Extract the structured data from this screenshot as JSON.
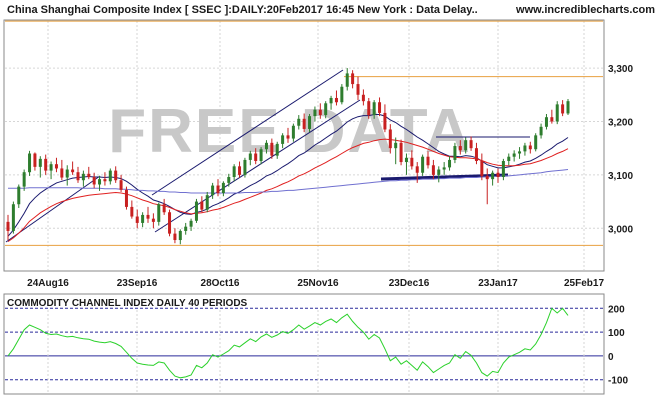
{
  "header": {
    "title": "China Shanghai Composite Index [ SSEC ]:DAILY:20Feb2017 16:45 New York : Data Delay..",
    "site": "www.incrediblecharts.com"
  },
  "watermark": "FREE DATA",
  "colors": {
    "header_bg": "#ffffff",
    "frame": "#8a8a8a",
    "grid": "#d6d6d6",
    "up": "#2e7d2e",
    "down": "#c82020",
    "ma_fast": "#1a1a6e",
    "ma_mid": "#e02020",
    "ma_slow": "#7070d0",
    "hline": "#e8a040",
    "trend": "#1a1a6e",
    "support": "#1a1a6e",
    "cci": "#2bd12b",
    "cci_ref": "#2a2a9a",
    "watermark": "#c8c8c8"
  },
  "chart_data": [
    {
      "type": "candlestick",
      "title": "China Shanghai Composite Index [ SSEC ]:DAILY:20Feb2017 16:45 New York : Data Delay..",
      "x_tick_labels": [
        "24Aug16",
        "23Sep16",
        "28Oct16",
        "25Nov16",
        "23Dec16",
        "23Jan17",
        "25Feb17"
      ],
      "y_tick_labels": [
        "3,300",
        "3,200",
        "3,100",
        "3,000"
      ],
      "y_ticks": [
        3300,
        3200,
        3100,
        3000
      ],
      "ylim": [
        2920,
        3390
      ],
      "grid": true,
      "horizontal_levels": [
        3388,
        3284,
        2968
      ],
      "candles": [
        [
          3012,
          3025,
          2978,
          2995
        ],
        [
          2995,
          3050,
          2990,
          3045
        ],
        [
          3045,
          3082,
          3038,
          3078
        ],
        [
          3078,
          3110,
          3070,
          3105
        ],
        [
          3105,
          3145,
          3098,
          3140
        ],
        [
          3140,
          3142,
          3108,
          3115
        ],
        [
          3115,
          3135,
          3095,
          3130
        ],
        [
          3130,
          3138,
          3100,
          3108
        ],
        [
          3108,
          3125,
          3092,
          3120
        ],
        [
          3120,
          3132,
          3105,
          3112
        ],
        [
          3112,
          3128,
          3090,
          3095
        ],
        [
          3095,
          3118,
          3080,
          3110
        ],
        [
          3110,
          3125,
          3100,
          3105
        ],
        [
          3105,
          3115,
          3085,
          3090
        ],
        [
          3090,
          3108,
          3078,
          3102
        ],
        [
          3102,
          3115,
          3092,
          3096
        ],
        [
          3096,
          3104,
          3075,
          3082
        ],
        [
          3082,
          3098,
          3070,
          3092
        ],
        [
          3092,
          3105,
          3080,
          3088
        ],
        [
          3088,
          3112,
          3082,
          3108
        ],
        [
          3108,
          3116,
          3085,
          3090
        ],
        [
          3090,
          3100,
          3068,
          3072
        ],
        [
          3072,
          3078,
          3035,
          3040
        ],
        [
          3040,
          3052,
          3018,
          3022
        ],
        [
          3022,
          3035,
          3000,
          3010
        ],
        [
          3010,
          3030,
          3002,
          3025
        ],
        [
          3025,
          3040,
          3010,
          3018
        ],
        [
          3018,
          3028,
          3000,
          3012
        ],
        [
          3012,
          3048,
          3005,
          3045
        ],
        [
          3045,
          3055,
          3025,
          3030
        ],
        [
          3030,
          3035,
          2985,
          2990
        ],
        [
          2990,
          3000,
          2972,
          2978
        ],
        [
          2978,
          2998,
          2970,
          2995
        ],
        [
          2995,
          3010,
          2988,
          3003
        ],
        [
          3003,
          3018,
          2995,
          3014
        ],
        [
          3014,
          3055,
          3010,
          3050
        ],
        [
          3050,
          3060,
          3030,
          3035
        ],
        [
          3035,
          3068,
          3030,
          3062
        ],
        [
          3062,
          3085,
          3055,
          3080
        ],
        [
          3080,
          3092,
          3060,
          3066
        ],
        [
          3066,
          3088,
          3060,
          3085
        ],
        [
          3085,
          3102,
          3078,
          3096
        ],
        [
          3096,
          3120,
          3088,
          3116
        ],
        [
          3116,
          3125,
          3095,
          3100
        ],
        [
          3100,
          3132,
          3095,
          3128
        ],
        [
          3128,
          3145,
          3118,
          3140
        ],
        [
          3140,
          3150,
          3120,
          3126
        ],
        [
          3126,
          3152,
          3120,
          3148
        ],
        [
          3148,
          3165,
          3140,
          3160
        ],
        [
          3160,
          3168,
          3130,
          3136
        ],
        [
          3136,
          3162,
          3130,
          3158
        ],
        [
          3158,
          3178,
          3150,
          3174
        ],
        [
          3174,
          3188,
          3160,
          3168
        ],
        [
          3168,
          3196,
          3162,
          3192
        ],
        [
          3192,
          3212,
          3185,
          3205
        ],
        [
          3205,
          3215,
          3180,
          3186
        ],
        [
          3186,
          3214,
          3180,
          3210
        ],
        [
          3210,
          3228,
          3200,
          3222
        ],
        [
          3222,
          3234,
          3205,
          3212
        ],
        [
          3212,
          3238,
          3206,
          3234
        ],
        [
          3234,
          3248,
          3222,
          3244
        ],
        [
          3244,
          3258,
          3230,
          3236
        ],
        [
          3236,
          3270,
          3232,
          3265
        ],
        [
          3265,
          3300,
          3258,
          3290
        ],
        [
          3290,
          3296,
          3262,
          3270
        ],
        [
          3270,
          3284,
          3240,
          3250
        ],
        [
          3250,
          3260,
          3230,
          3238
        ],
        [
          3238,
          3244,
          3205,
          3212
        ],
        [
          3212,
          3240,
          3205,
          3236
        ],
        [
          3236,
          3245,
          3210,
          3216
        ],
        [
          3216,
          3232,
          3180,
          3185
        ],
        [
          3185,
          3195,
          3140,
          3150
        ],
        [
          3150,
          3170,
          3120,
          3160
        ],
        [
          3160,
          3166,
          3118,
          3124
        ],
        [
          3124,
          3140,
          3100,
          3132
        ],
        [
          3132,
          3146,
          3110,
          3116
        ],
        [
          3116,
          3124,
          3085,
          3104
        ],
        [
          3104,
          3138,
          3098,
          3134
        ],
        [
          3134,
          3144,
          3112,
          3118
        ],
        [
          3118,
          3128,
          3092,
          3100
        ],
        [
          3100,
          3116,
          3086,
          3110
        ],
        [
          3110,
          3124,
          3100,
          3114
        ],
        [
          3114,
          3135,
          3108,
          3128
        ],
        [
          3128,
          3160,
          3122,
          3154
        ],
        [
          3154,
          3165,
          3138,
          3146
        ],
        [
          3146,
          3170,
          3140,
          3165
        ],
        [
          3165,
          3172,
          3145,
          3150
        ],
        [
          3150,
          3160,
          3120,
          3126
        ],
        [
          3126,
          3140,
          3090,
          3098
        ],
        [
          3098,
          3112,
          3045,
          3092
        ],
        [
          3092,
          3108,
          3080,
          3104
        ],
        [
          3104,
          3112,
          3085,
          3096
        ],
        [
          3096,
          3130,
          3090,
          3126
        ],
        [
          3126,
          3140,
          3118,
          3134
        ],
        [
          3134,
          3146,
          3125,
          3140
        ],
        [
          3140,
          3152,
          3130,
          3144
        ],
        [
          3144,
          3160,
          3136,
          3155
        ],
        [
          3155,
          3162,
          3140,
          3148
        ],
        [
          3148,
          3178,
          3144,
          3174
        ],
        [
          3174,
          3196,
          3168,
          3190
        ],
        [
          3190,
          3214,
          3185,
          3208
        ],
        [
          3208,
          3222,
          3196,
          3200
        ],
        [
          3200,
          3238,
          3195,
          3232
        ],
        [
          3232,
          3240,
          3210,
          3215
        ],
        [
          3215,
          3242,
          3212,
          3238
        ]
      ],
      "series": [
        {
          "name": "",
          "values": [
            2985,
            2997,
            3012,
            3028,
            3046,
            3057,
            3066,
            3073,
            3079,
            3085,
            3088,
            3091,
            3094,
            3095,
            3096,
            3097,
            3096,
            3096,
            3095,
            3096,
            3095,
            3093,
            3088,
            3081,
            3073,
            3066,
            3060,
            3053,
            3050,
            3046,
            3041,
            3035,
            3030,
            3027,
            3026,
            3030,
            3032,
            3036,
            3042,
            3046,
            3051,
            3057,
            3064,
            3068,
            3074,
            3080,
            3085,
            3091,
            3098,
            3102,
            3108,
            3115,
            3121,
            3128,
            3136,
            3141,
            3148,
            3156,
            3162,
            3169,
            3176,
            3182,
            3190,
            3199,
            3205,
            3209,
            3211,
            3211,
            3213,
            3213,
            3210,
            3203,
            3198,
            3191,
            3185,
            3178,
            3171,
            3165,
            3158,
            3151,
            3144,
            3139,
            3135,
            3135,
            3134,
            3136,
            3135,
            3132,
            3126,
            3119,
            3116,
            3113,
            3113,
            3115,
            3117,
            3120,
            3124,
            3126,
            3131,
            3137,
            3144,
            3150,
            3158,
            3163,
            3170
          ]
        },
        {
          "name": "",
          "values": [
            2975,
            2982,
            2991,
            3001,
            3013,
            3021,
            3029,
            3035,
            3041,
            3046,
            3050,
            3053,
            3056,
            3058,
            3060,
            3062,
            3063,
            3064,
            3065,
            3066,
            3067,
            3066,
            3064,
            3061,
            3057,
            3053,
            3050,
            3046,
            3044,
            3042,
            3039,
            3035,
            3032,
            3029,
            3027,
            3028,
            3029,
            3031,
            3034,
            3036,
            3039,
            3043,
            3047,
            3050,
            3054,
            3058,
            3062,
            3066,
            3071,
            3074,
            3078,
            3083,
            3087,
            3092,
            3098,
            3102,
            3107,
            3113,
            3118,
            3123,
            3129,
            3134,
            3140,
            3146,
            3151,
            3155,
            3159,
            3161,
            3164,
            3166,
            3167,
            3166,
            3165,
            3163,
            3161,
            3158,
            3155,
            3152,
            3148,
            3144,
            3140,
            3137,
            3134,
            3133,
            3132,
            3132,
            3131,
            3130,
            3127,
            3123,
            3120,
            3118,
            3117,
            3117,
            3117,
            3118,
            3120,
            3121,
            3124,
            3127,
            3131,
            3135,
            3140,
            3144,
            3149
          ]
        },
        {
          "name": "",
          "values": [
            3075,
            3075,
            3075,
            3075,
            3076,
            3076,
            3076,
            3076,
            3076,
            3076,
            3076,
            3076,
            3076,
            3076,
            3075,
            3075,
            3075,
            3075,
            3074,
            3074,
            3074,
            3073,
            3073,
            3072,
            3071,
            3071,
            3070,
            3070,
            3069,
            3069,
            3068,
            3068,
            3067,
            3067,
            3066,
            3066,
            3066,
            3066,
            3066,
            3066,
            3066,
            3066,
            3066,
            3066,
            3067,
            3067,
            3067,
            3068,
            3068,
            3069,
            3069,
            3070,
            3071,
            3071,
            3072,
            3073,
            3074,
            3075,
            3076,
            3077,
            3078,
            3079,
            3080,
            3081,
            3082,
            3083,
            3084,
            3085,
            3086,
            3087,
            3088,
            3089,
            3089,
            3090,
            3090,
            3091,
            3091,
            3092,
            3092,
            3092,
            3093,
            3093,
            3094,
            3094,
            3094,
            3095,
            3095,
            3095,
            3096,
            3096,
            3097,
            3097,
            3098,
            3098,
            3099,
            3100,
            3101,
            3102,
            3103,
            3104,
            3106,
            3107,
            3108,
            3109,
            3110
          ]
        }
      ]
    },
    {
      "type": "line",
      "title": "COMMODITY CHANNEL INDEX DAILY 40 PERIODS",
      "y_tick_labels": [
        "200",
        "100",
        "0",
        "-100"
      ],
      "y_ticks": [
        200,
        100,
        0,
        -100
      ],
      "ylim": [
        -160,
        260
      ],
      "reference_lines": [
        200,
        100,
        0,
        -100
      ],
      "series": [
        {
          "name": "",
          "values": [
            0,
            30,
            70,
            110,
            130,
            120,
            110,
            95,
            90,
            92,
            85,
            80,
            82,
            76,
            72,
            70,
            62,
            58,
            55,
            60,
            52,
            40,
            15,
            -10,
            -30,
            -35,
            -38,
            -40,
            -25,
            -30,
            -60,
            -85,
            -92,
            -88,
            -80,
            -40,
            -50,
            -30,
            5,
            -5,
            8,
            22,
            45,
            38,
            55,
            72,
            60,
            80,
            92,
            78,
            88,
            102,
            95,
            110,
            130,
            112,
            125,
            140,
            130,
            145,
            155,
            140,
            160,
            175,
            145,
            120,
            100,
            70,
            90,
            75,
            30,
            -20,
            -5,
            -35,
            -20,
            -40,
            -60,
            -25,
            -45,
            -70,
            -55,
            -40,
            -30,
            5,
            -10,
            18,
            2,
            -30,
            -70,
            -85,
            -65,
            -70,
            -30,
            -5,
            5,
            15,
            30,
            25,
            50,
            90,
            140,
            200,
            180,
            200,
            170
          ]
        }
      ]
    }
  ]
}
